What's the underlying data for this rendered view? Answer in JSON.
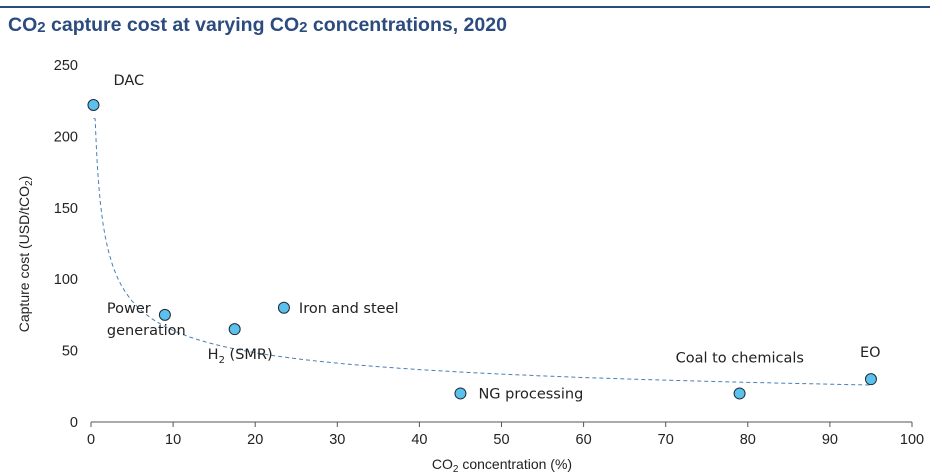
{
  "chart_data": {
    "type": "scatter",
    "title": "CO₂ capture cost at varying CO₂ concentrations, 2020",
    "xlabel": "CO₂ concentration (%)",
    "ylabel": "Capture cost (USD/tCO₂)",
    "xlim": [
      0,
      100
    ],
    "ylim": [
      0,
      250
    ],
    "x_ticks": [
      0,
      10,
      20,
      30,
      40,
      50,
      60,
      70,
      80,
      90,
      100
    ],
    "y_ticks": [
      0,
      50,
      100,
      150,
      200,
      250
    ],
    "grid": false,
    "legend": "none",
    "marker_color": "#5bc0eb",
    "trendline": "dashed power-law fit",
    "points": [
      {
        "label": "DAC",
        "x": 0.3,
        "y": 222
      },
      {
        "label": "Power generation",
        "x": 9,
        "y": 75
      },
      {
        "label": "H2 (SMR)",
        "x": 17.5,
        "y": 65
      },
      {
        "label": "Iron and steel",
        "x": 23.5,
        "y": 80
      },
      {
        "label": "NG processing",
        "x": 45,
        "y": 20
      },
      {
        "label": "Coal to chemicals",
        "x": 79,
        "y": 20
      },
      {
        "label": "EO",
        "x": 95,
        "y": 30
      }
    ]
  }
}
